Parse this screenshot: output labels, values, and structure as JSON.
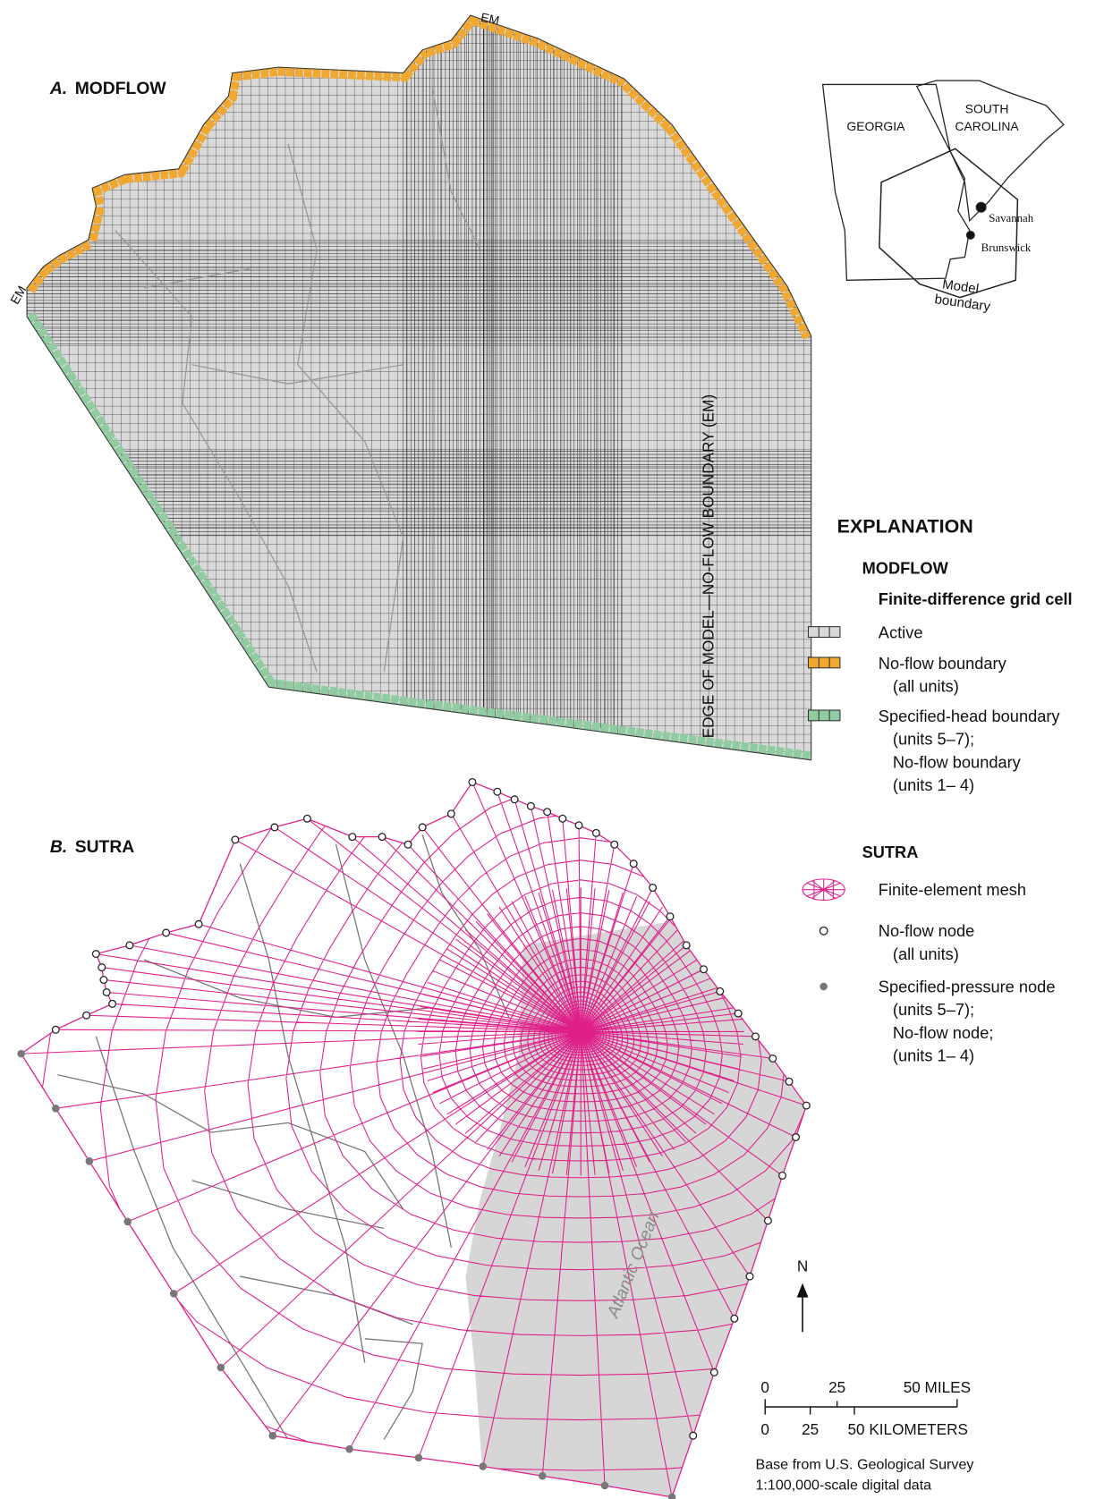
{
  "panel_a": {
    "label": "A.",
    "title": "MODFLOW",
    "edge_markers": [
      "EM",
      "EM"
    ],
    "edge_label": "EDGE OF MODEL—NO-FLOW BOUNDARY (EM)"
  },
  "panel_b": {
    "label": "B.",
    "title": "SUTRA",
    "ocean_label": "Atlantic Ocean"
  },
  "inset": {
    "georgia": "GEORGIA",
    "south_carolina": [
      "SOUTH",
      "CAROLINA"
    ],
    "cities": [
      "Savannah",
      "Brunswick"
    ],
    "model_boundary": [
      "Model",
      "boundary"
    ]
  },
  "explanation": {
    "title": "EXPLANATION",
    "modflow": {
      "heading": "MODFLOW",
      "subheading": "Finite-difference grid cell",
      "items": [
        [
          "Active"
        ],
        [
          "No-flow boundary",
          "(all units)"
        ],
        [
          "Specified-head boundary",
          "(units 5–7);",
          "No-flow boundary",
          "(units 1– 4)"
        ]
      ]
    },
    "sutra": {
      "heading": "SUTRA",
      "items": [
        [
          "Finite-element mesh"
        ],
        [
          "No-flow node",
          "(all units)"
        ],
        [
          "Specified-pressure node",
          "(units 5–7);",
          "No-flow node;",
          "(units 1– 4)"
        ]
      ]
    }
  },
  "north": "N",
  "scale": {
    "miles": [
      "0",
      "25",
      "50 MILES"
    ],
    "kilometers": [
      "0",
      "25",
      "50 KILOMETERS"
    ]
  },
  "source": [
    "Base from U.S. Geological Survey",
    "1:100,000-scale digital data"
  ]
}
